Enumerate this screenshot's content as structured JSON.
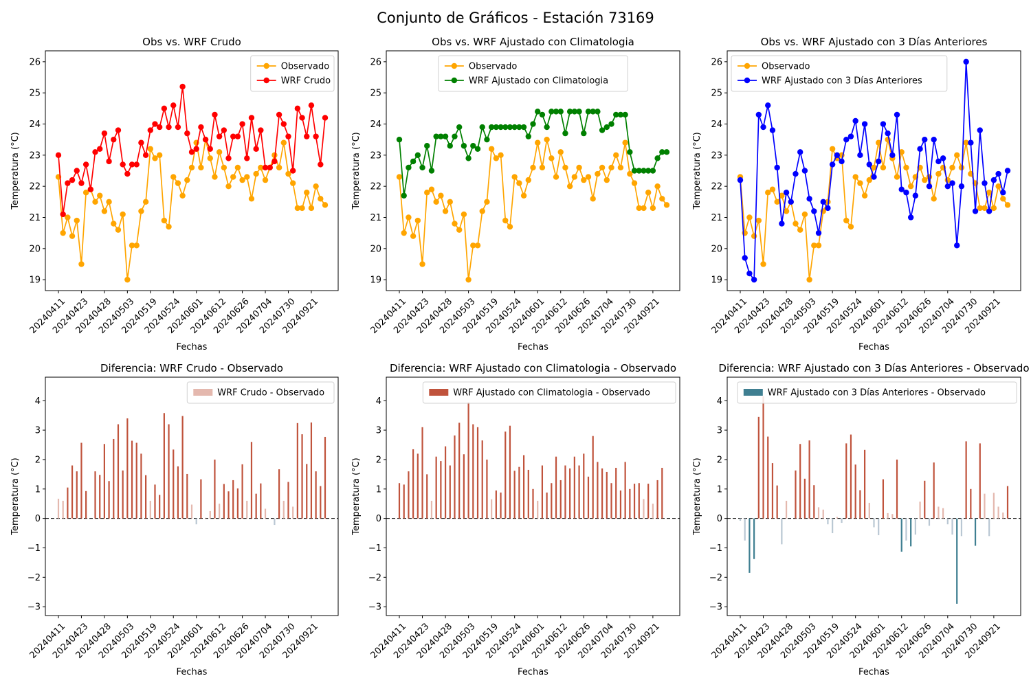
{
  "figure": {
    "title": "Conjunto de Gráficos - Estación 73169"
  },
  "shared": {
    "xticks": [
      "20240411",
      "20240423",
      "20240428",
      "20240503",
      "20240519",
      "20240524",
      "20240601",
      "20240612",
      "20240626",
      "20240704",
      "20240730",
      "20240921"
    ],
    "observado": [
      22.3,
      20.5,
      21.0,
      20.4,
      20.9,
      19.5,
      21.8,
      21.9,
      21.5,
      21.7,
      21.2,
      21.5,
      20.8,
      20.6,
      21.1,
      19.0,
      20.1,
      20.1,
      21.2,
      21.5,
      23.2,
      22.9,
      23.0,
      20.9,
      20.7,
      22.3,
      22.1,
      21.7,
      22.2,
      22.6,
      23.4,
      22.6,
      23.5,
      22.9,
      22.3,
      23.1,
      22.6,
      22.0,
      22.3,
      22.6,
      22.2,
      22.3,
      21.6,
      22.4,
      22.6,
      22.2,
      22.6,
      23.0,
      22.6,
      23.4,
      22.4,
      22.1,
      21.3,
      21.3,
      21.8,
      21.3,
      22.0,
      21.6,
      21.4
    ]
  },
  "colors": {
    "observado": "#ffa500",
    "wrf_crudo": "#ff0000",
    "wrf_clim": "#008000",
    "wrf_3dias": "#0000ff",
    "bar_pos": "#c0533c",
    "bar_pos_light": "#e4b8ae",
    "bar_neg": "#3f7f91",
    "bar_neg_light": "#b9c7d3"
  },
  "chart_data": [
    {
      "type": "line",
      "title": "Obs vs. WRF Crudo",
      "xlabel": "Fechas",
      "ylabel": "Temperatura (°C)",
      "ylim": [
        18.65,
        26.35
      ],
      "yticks": [
        19,
        20,
        21,
        22,
        23,
        24,
        25,
        26
      ],
      "legend_position": "upper right",
      "series": [
        {
          "name": "Observado",
          "color": "#ffa500",
          "values": "observado"
        },
        {
          "name": "WRF Crudo",
          "color": "#ff0000",
          "values": [
            23.0,
            21.1,
            22.1,
            22.2,
            22.5,
            22.1,
            22.7,
            21.9,
            23.1,
            23.2,
            23.7,
            22.8,
            23.5,
            23.8,
            22.7,
            22.4,
            22.7,
            22.7,
            23.4,
            23.0,
            23.8,
            24.0,
            23.9,
            24.5,
            23.9,
            24.6,
            23.9,
            25.2,
            23.7,
            23.1,
            23.2,
            23.9,
            23.5,
            23.2,
            24.3,
            23.6,
            23.8,
            22.9,
            23.6,
            23.6,
            24.0,
            22.9,
            24.2,
            23.2,
            23.8,
            22.6,
            22.6,
            22.8,
            24.3,
            24.0,
            23.6,
            22.5,
            24.5,
            24.2,
            23.6,
            24.6,
            23.6,
            22.7,
            24.2
          ]
        }
      ]
    },
    {
      "type": "line",
      "title": "Obs vs. WRF Ajustado con Climatologia",
      "xlabel": "Fechas",
      "ylabel": "Temperatura (°C)",
      "ylim": [
        18.65,
        26.35
      ],
      "yticks": [
        19,
        20,
        21,
        22,
        23,
        24,
        25,
        26
      ],
      "legend_position": "upper center",
      "series": [
        {
          "name": "Observado",
          "color": "#ffa500",
          "values": "observado"
        },
        {
          "name": "WRF Ajustado con Climatologia",
          "color": "#008000",
          "values": [
            23.5,
            21.7,
            22.6,
            22.8,
            23.0,
            22.6,
            23.3,
            22.5,
            23.6,
            23.6,
            23.6,
            23.3,
            23.6,
            23.9,
            23.3,
            22.9,
            23.3,
            23.2,
            23.9,
            23.5,
            23.9,
            23.9,
            23.9,
            23.9,
            23.9,
            23.9,
            23.9,
            23.9,
            23.6,
            24.0,
            24.4,
            24.3,
            23.9,
            24.4,
            24.4,
            24.4,
            23.7,
            24.4,
            24.4,
            24.4,
            23.7,
            24.4,
            24.4,
            24.4,
            23.8,
            23.9,
            24.0,
            24.3,
            24.3,
            24.3,
            23.1,
            22.5,
            22.5,
            22.5,
            22.5,
            22.5,
            22.9,
            23.1,
            23.1
          ]
        }
      ]
    },
    {
      "type": "line",
      "title": "Obs vs. WRF Ajustado con 3 Días Anteriores",
      "xlabel": "Fechas",
      "ylabel": "Temperatura (°C)",
      "ylim": [
        18.65,
        26.35
      ],
      "yticks": [
        19,
        20,
        21,
        22,
        23,
        24,
        25,
        26
      ],
      "legend_position": "upper left",
      "series": [
        {
          "name": "Observado",
          "color": "#ffa500",
          "values": "observado"
        },
        {
          "name": "WRF Ajustado con 3 Días Anteriores",
          "color": "#0000ff",
          "values": [
            22.2,
            19.7,
            19.2,
            19.0,
            24.3,
            23.9,
            24.6,
            23.8,
            22.6,
            20.8,
            21.8,
            21.5,
            22.4,
            23.1,
            22.5,
            21.6,
            21.2,
            20.5,
            21.5,
            21.3,
            22.7,
            23.0,
            22.8,
            23.5,
            23.6,
            24.1,
            23.0,
            24.0,
            22.7,
            22.3,
            22.8,
            24.0,
            23.7,
            23.0,
            24.3,
            21.9,
            21.8,
            21.0,
            21.7,
            23.2,
            23.5,
            22.0,
            23.5,
            22.8,
            22.9,
            22.0,
            22.1,
            20.1,
            22.0,
            26.0,
            23.4,
            21.2,
            23.8,
            22.1,
            21.2,
            22.2,
            22.4,
            21.8,
            22.5
          ]
        }
      ]
    },
    {
      "type": "bar",
      "title": "Diferencia: WRF Crudo - Observado",
      "xlabel": "Fechas",
      "ylabel": "Temperatura (°C)",
      "ylim": [
        -3.3,
        4.8
      ],
      "yticks": [
        -3,
        -2,
        -1,
        0,
        1,
        2,
        3,
        4
      ],
      "legend_position": "upper right",
      "legend": "WRF Crudo - Observado",
      "legend_color": "#e4b8ae",
      "values": [
        0.67,
        0.6,
        1.05,
        1.8,
        1.6,
        2.57,
        0.93,
        0.0,
        1.6,
        1.48,
        2.53,
        1.27,
        2.7,
        3.2,
        1.63,
        3.4,
        2.64,
        2.57,
        2.2,
        1.47,
        0.6,
        1.15,
        0.8,
        3.58,
        3.2,
        2.34,
        1.77,
        3.48,
        1.51,
        0.47,
        -0.2,
        1.33,
        0.02,
        0.25,
        2.0,
        0.5,
        1.17,
        0.92,
        1.3,
        1.02,
        1.84,
        0.6,
        2.6,
        0.84,
        1.19,
        0.33,
        0.0,
        -0.22,
        1.67,
        0.6,
        1.24,
        0.4,
        3.24,
        2.86,
        1.85,
        3.26,
        1.6,
        1.1,
        2.77
      ]
    },
    {
      "type": "bar",
      "title": "Diferencia: WRF Ajustado con Climatologia - Observado",
      "xlabel": "Fechas",
      "ylabel": "Temperatura (°C)",
      "ylim": [
        -3.3,
        4.8
      ],
      "yticks": [
        -3,
        -2,
        -1,
        0,
        1,
        2,
        3,
        4
      ],
      "legend_position": "upper right",
      "legend": "WRF Ajustado con Climatologia - Observado",
      "legend_color": "#c0533c",
      "values": [
        1.2,
        1.15,
        1.6,
        2.35,
        2.2,
        3.1,
        1.5,
        0.6,
        2.1,
        1.95,
        2.45,
        1.8,
        2.82,
        3.25,
        2.18,
        3.95,
        3.2,
        3.1,
        2.65,
        2.0,
        0.65,
        0.95,
        0.88,
        2.95,
        3.15,
        1.62,
        1.75,
        2.15,
        1.65,
        1.0,
        0.6,
        1.8,
        0.88,
        1.2,
        2.1,
        1.3,
        1.8,
        1.7,
        2.1,
        1.8,
        2.2,
        1.42,
        2.8,
        1.92,
        1.7,
        1.58,
        1.2,
        1.72,
        0.95,
        1.92,
        1.0,
        1.18,
        1.2,
        0.66,
        1.18,
        0.5,
        1.3,
        1.72,
        0.0
      ]
    },
    {
      "type": "bar",
      "title": "Diferencia: WRF Ajustado con 3 Días Anteriores - Observado",
      "xlabel": "Fechas",
      "ylabel": "Temperatura (°C)",
      "ylim": [
        -3.3,
        4.8
      ],
      "yticks": [
        -3,
        -2,
        -1,
        0,
        1,
        2,
        3,
        4
      ],
      "legend_position": "upper right",
      "legend": "WRF Ajustado con 3 Días Anteriores - Observado",
      "legend_color": "#3f7f91",
      "values": [
        -0.08,
        -0.75,
        -1.85,
        -1.38,
        3.45,
        4.15,
        2.78,
        1.88,
        1.12,
        -0.88,
        0.6,
        0.0,
        1.63,
        2.53,
        1.35,
        2.65,
        1.13,
        0.38,
        0.3,
        -0.2,
        -0.5,
        0.05,
        -0.15,
        2.55,
        2.85,
        1.83,
        0.96,
        2.33,
        0.53,
        -0.3,
        -0.57,
        1.33,
        0.18,
        0.15,
        2.0,
        -1.13,
        -0.75,
        -0.95,
        -0.55,
        0.57,
        1.28,
        -0.25,
        1.9,
        0.4,
        0.35,
        -0.2,
        -0.55,
        -2.9,
        -0.6,
        2.62,
        1.0,
        -0.93,
        2.55,
        0.84,
        -0.6,
        0.87,
        0.4,
        0.2,
        1.1
      ]
    }
  ]
}
